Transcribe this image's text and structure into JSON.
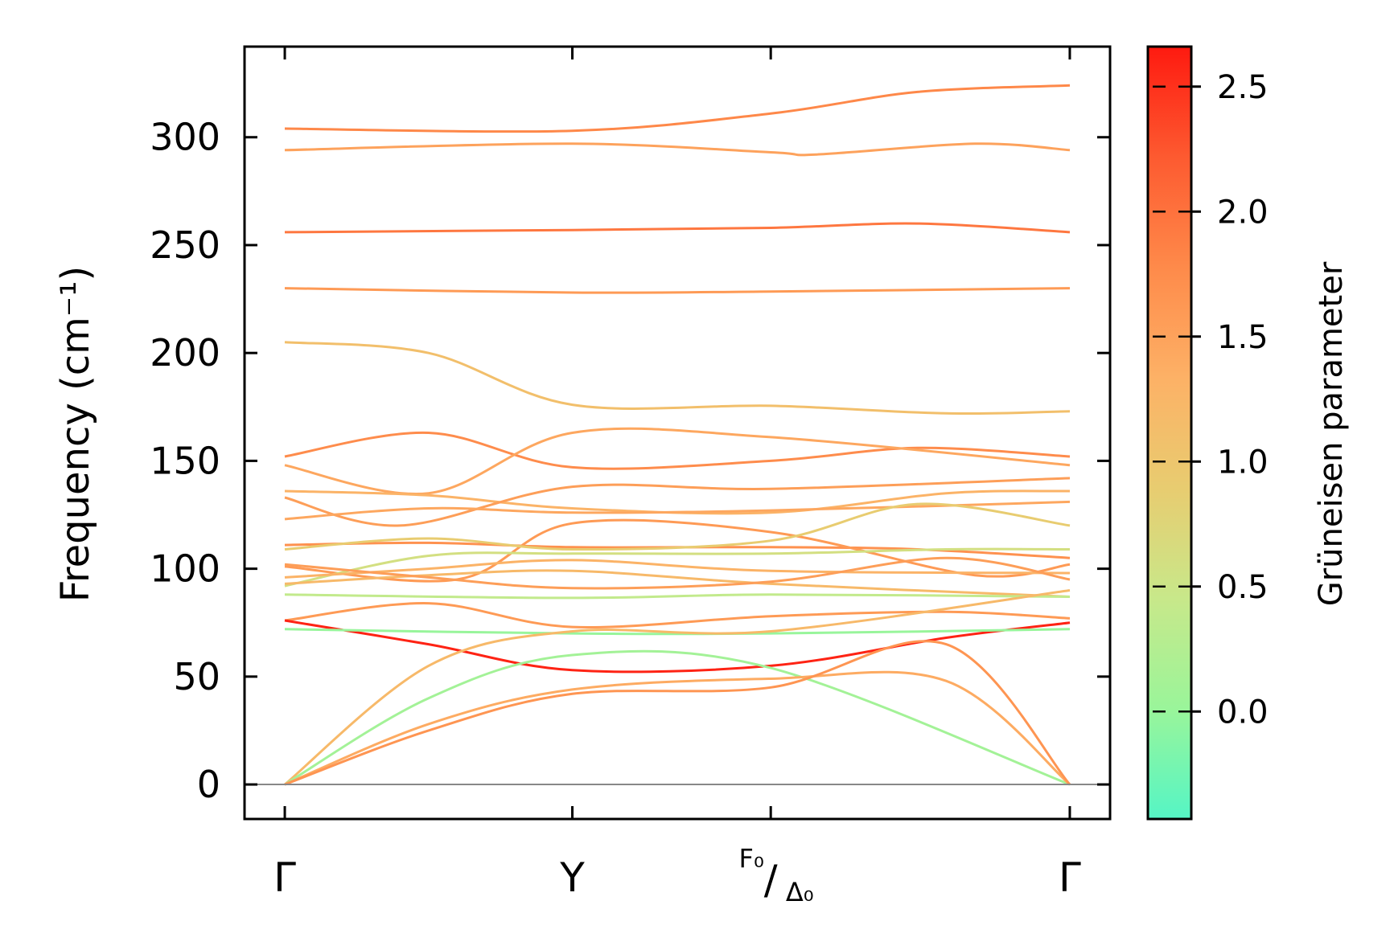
{
  "chart_data": {
    "type": "line",
    "ylabel": "Frequency (cm⁻¹)",
    "ylim": [
      -16,
      342
    ],
    "yticks": [
      0,
      50,
      100,
      150,
      200,
      250,
      300
    ],
    "x_ticks": [
      {
        "pos": 0,
        "label": "Γ"
      },
      {
        "pos": 1,
        "label": "Y"
      },
      {
        "pos": 1.69,
        "label_num": "F₀",
        "label_den": "Δ₀"
      },
      {
        "pos": 2.73,
        "label": "Γ"
      }
    ],
    "xlim": [
      -0.14,
      2.87
    ],
    "zero_line": 0,
    "colorbar": {
      "label": "Grüneisen parameter",
      "range": [
        -0.43,
        2.66
      ],
      "ticks": [
        "0.0",
        "0.5",
        "1.0",
        "1.5",
        "2.0",
        "2.5"
      ],
      "tick_values": [
        0.0,
        0.5,
        1.0,
        1.5,
        2.0,
        2.5
      ],
      "colormap": [
        "#55f5c5",
        "#9af59a",
        "#c8e88a",
        "#e8cc70",
        "#fdb166",
        "#fe8a4a",
        "#fd5a30",
        "#fe1a10"
      ]
    },
    "bands": [
      {
        "g": 1.8,
        "points": [
          [
            0,
            304
          ],
          [
            1,
            303
          ],
          [
            1.69,
            311
          ],
          [
            2.2,
            321
          ],
          [
            2.73,
            324
          ]
        ]
      },
      {
        "g": 1.5,
        "points": [
          [
            0,
            294
          ],
          [
            1,
            297
          ],
          [
            1.69,
            293
          ],
          [
            1.85,
            292
          ],
          [
            2.4,
            297
          ],
          [
            2.73,
            294
          ]
        ]
      },
      {
        "g": 1.95,
        "points": [
          [
            0,
            256
          ],
          [
            1,
            257
          ],
          [
            1.69,
            258
          ],
          [
            2.2,
            260
          ],
          [
            2.73,
            256
          ]
        ]
      },
      {
        "g": 1.6,
        "points": [
          [
            0,
            230
          ],
          [
            1,
            228
          ],
          [
            1.69,
            228.5
          ],
          [
            2.73,
            230
          ]
        ]
      },
      {
        "g": 1.1,
        "points": [
          [
            0,
            205
          ],
          [
            0.5,
            200
          ],
          [
            1,
            176
          ],
          [
            1.69,
            175.5
          ],
          [
            2.3,
            172
          ],
          [
            2.73,
            173
          ]
        ]
      },
      {
        "g": 1.75,
        "points": [
          [
            0,
            152
          ],
          [
            0.5,
            163
          ],
          [
            1,
            147
          ],
          [
            1.69,
            150
          ],
          [
            2.2,
            156
          ],
          [
            2.73,
            152
          ]
        ]
      },
      {
        "g": 1.45,
        "points": [
          [
            0,
            148
          ],
          [
            0.5,
            135
          ],
          [
            1,
            163
          ],
          [
            1.69,
            161
          ],
          [
            2.73,
            148
          ]
        ]
      },
      {
        "g": 1.3,
        "points": [
          [
            0,
            136
          ],
          [
            0.5,
            134
          ],
          [
            1,
            128
          ],
          [
            1.69,
            126
          ],
          [
            2.3,
            135
          ],
          [
            2.73,
            136
          ]
        ]
      },
      {
        "g": 1.55,
        "points": [
          [
            0,
            133
          ],
          [
            0.4,
            120
          ],
          [
            1,
            138
          ],
          [
            1.69,
            137
          ],
          [
            2.73,
            142
          ]
        ]
      },
      {
        "g": 1.45,
        "points": [
          [
            0,
            123
          ],
          [
            0.5,
            128
          ],
          [
            1,
            126
          ],
          [
            1.69,
            127
          ],
          [
            2.73,
            131
          ]
        ]
      },
      {
        "g": 1.7,
        "points": [
          [
            0,
            111
          ],
          [
            0.5,
            112
          ],
          [
            1,
            110
          ],
          [
            1.69,
            110
          ],
          [
            2.2,
            109
          ],
          [
            2.73,
            105
          ]
        ]
      },
      {
        "g": 1.6,
        "points": [
          [
            0,
            101
          ],
          [
            0.6,
            95
          ],
          [
            1,
            121
          ],
          [
            1.69,
            117
          ],
          [
            2.4,
            97
          ],
          [
            2.73,
            102
          ]
        ]
      },
      {
        "g": 0.9,
        "points": [
          [
            0,
            109
          ],
          [
            0.5,
            114
          ],
          [
            1,
            109
          ],
          [
            1.69,
            113
          ],
          [
            2.2,
            130
          ],
          [
            2.73,
            120
          ]
        ]
      },
      {
        "g": 0.6,
        "points": [
          [
            0,
            92
          ],
          [
            0.5,
            106
          ],
          [
            1,
            107
          ],
          [
            1.69,
            107
          ],
          [
            2.3,
            109
          ],
          [
            2.73,
            109
          ]
        ]
      },
      {
        "g": 1.3,
        "points": [
          [
            0,
            96
          ],
          [
            0.5,
            100
          ],
          [
            1,
            104
          ],
          [
            1.69,
            99
          ],
          [
            2.73,
            98
          ]
        ]
      },
      {
        "g": 1.2,
        "points": [
          [
            0,
            93
          ],
          [
            0.5,
            97
          ],
          [
            1,
            99
          ],
          [
            1.69,
            93
          ],
          [
            2.73,
            87
          ]
        ]
      },
      {
        "g": 1.55,
        "points": [
          [
            0,
            102
          ],
          [
            0.5,
            96
          ],
          [
            1,
            91
          ],
          [
            1.69,
            94
          ],
          [
            2.3,
            105
          ],
          [
            2.73,
            95
          ]
        ]
      },
      {
        "g": 0.4,
        "points": [
          [
            0,
            88
          ],
          [
            1,
            86.5
          ],
          [
            1.69,
            88
          ],
          [
            2.73,
            87
          ]
        ]
      },
      {
        "g": 1.6,
        "points": [
          [
            0,
            76
          ],
          [
            0.5,
            84
          ],
          [
            1,
            73
          ],
          [
            1.69,
            78
          ],
          [
            2.3,
            80
          ],
          [
            2.73,
            77
          ]
        ]
      },
      {
        "g": 2.6,
        "points": [
          [
            0,
            76
          ],
          [
            0.5,
            65
          ],
          [
            1,
            53
          ],
          [
            1.69,
            55
          ],
          [
            2.3,
            68
          ],
          [
            2.73,
            75
          ]
        ]
      },
      {
        "g": 0.0,
        "points": [
          [
            0,
            72
          ],
          [
            1,
            70
          ],
          [
            1.69,
            70
          ],
          [
            2.73,
            72
          ]
        ]
      },
      {
        "g": 1.2,
        "points": [
          [
            0,
            0
          ],
          [
            0.5,
            55
          ],
          [
            1,
            71
          ],
          [
            1.69,
            71
          ],
          [
            2.73,
            90
          ]
        ]
      },
      {
        "g": 0.1,
        "points": [
          [
            0,
            0
          ],
          [
            0.5,
            40
          ],
          [
            1,
            60
          ],
          [
            1.69,
            54
          ],
          [
            2.73,
            0
          ]
        ]
      },
      {
        "g": 1.4,
        "points": [
          [
            0,
            0
          ],
          [
            0.5,
            28
          ],
          [
            1,
            44
          ],
          [
            1.69,
            49
          ],
          [
            2.3,
            48
          ],
          [
            2.73,
            0
          ]
        ]
      },
      {
        "g": 1.65,
        "points": [
          [
            0,
            0
          ],
          [
            0.5,
            25
          ],
          [
            1,
            42
          ],
          [
            1.69,
            45
          ],
          [
            2.3,
            65
          ],
          [
            2.73,
            0
          ]
        ]
      }
    ]
  }
}
